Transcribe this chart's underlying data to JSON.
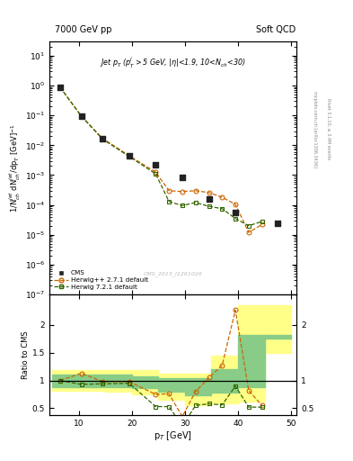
{
  "title_left": "7000 GeV pp",
  "title_right": "Soft QCD",
  "ylabel_main": "1/N$_{ch}^{jet}$ dN$_{ch}^{jet}$/dp$_{T}$ [GeV]$^{-1}$",
  "ylabel_ratio": "Ratio to CMS",
  "xlabel": "p$_{T}$ [GeV]",
  "inner_title": "Jet p$_{T}$ (p$_{T}^{j}$$>$5 GeV, |$\\eta$|<1.9, 10<N$_{ch}$<30)",
  "watermark": "CMS_2013_I1261026",
  "right_label_top": "mcplots.cern.ch [arXiv:1306.3436]",
  "rivet_label": "Rivet 3.1.10, ≥ 3.4M events",
  "cms_x": [
    6.5,
    10.5,
    14.5,
    19.5,
    24.5,
    29.5,
    34.5,
    39.5,
    47.5
  ],
  "cms_y": [
    0.88,
    0.095,
    0.017,
    0.0045,
    0.00225,
    0.00085,
    0.00016,
    5.5e-05,
    2.5e-05
  ],
  "cms_color": "#222222",
  "hw_x": [
    6.5,
    10.5,
    14.5,
    19.5,
    24.5,
    27.0,
    29.5,
    32.0,
    34.5,
    37.0,
    39.5,
    42.0,
    44.5
  ],
  "hw_y": [
    0.88,
    0.095,
    0.017,
    0.0045,
    0.00125,
    0.0003,
    0.00028,
    0.0003,
    0.00026,
    0.00018,
    0.000105,
    1.2e-05,
    2.2e-05
  ],
  "hw_color": "#cc6600",
  "hw_label": "Herwig++ 2.7.1 default",
  "hw7_x": [
    6.5,
    10.5,
    14.5,
    19.5,
    24.5,
    27.0,
    29.5,
    32.0,
    34.5,
    37.0,
    39.5,
    42.0,
    44.5
  ],
  "hw7_y": [
    0.88,
    0.095,
    0.016,
    0.0042,
    0.0011,
    0.00013,
    9.5e-05,
    0.00012,
    9e-05,
    7.5e-05,
    3.5e-05,
    2e-05,
    2.8e-05
  ],
  "hw7_color": "#336600",
  "hw7_label": "Herwig 7.2.1 default",
  "ratio_hw_x": [
    6.5,
    10.5,
    14.5,
    19.5,
    24.5,
    27.0,
    29.5,
    32.0,
    34.5,
    37.0,
    39.5,
    42.0,
    44.5
  ],
  "ratio_hw_y": [
    1.0,
    1.13,
    0.98,
    0.98,
    0.75,
    0.76,
    0.35,
    0.8,
    1.05,
    1.27,
    2.27,
    0.82,
    0.55
  ],
  "ratio_hw7_x": [
    6.5,
    10.5,
    14.5,
    19.5,
    24.5,
    27.0,
    29.5,
    32.0,
    34.5,
    37.0,
    39.5,
    42.0,
    44.5
  ],
  "ratio_hw7_y": [
    1.0,
    0.93,
    0.94,
    0.95,
    0.53,
    0.53,
    0.18,
    0.55,
    0.58,
    0.56,
    0.9,
    0.52,
    0.52
  ],
  "band_yellow_edges": [
    5,
    10,
    15,
    20,
    25,
    30,
    35,
    40,
    45,
    50
  ],
  "band_yellow_lo": [
    0.82,
    0.82,
    0.8,
    0.75,
    0.65,
    0.55,
    0.58,
    0.62,
    1.5,
    1.5
  ],
  "band_yellow_hi": [
    1.18,
    1.18,
    1.18,
    1.18,
    1.12,
    1.12,
    1.45,
    2.35,
    2.35,
    2.35
  ],
  "band_green_edges": [
    5,
    10,
    15,
    20,
    25,
    30,
    35,
    40,
    45,
    50
  ],
  "band_green_lo": [
    0.88,
    0.88,
    0.88,
    0.86,
    0.8,
    0.74,
    0.78,
    0.88,
    1.75,
    1.75
  ],
  "band_green_hi": [
    1.1,
    1.1,
    1.1,
    1.08,
    1.04,
    1.04,
    1.2,
    1.82,
    1.82,
    1.82
  ],
  "ylim_main": [
    1e-07,
    30
  ],
  "ylim_ratio": [
    0.38,
    2.55
  ],
  "xlim": [
    4.5,
    51
  ]
}
